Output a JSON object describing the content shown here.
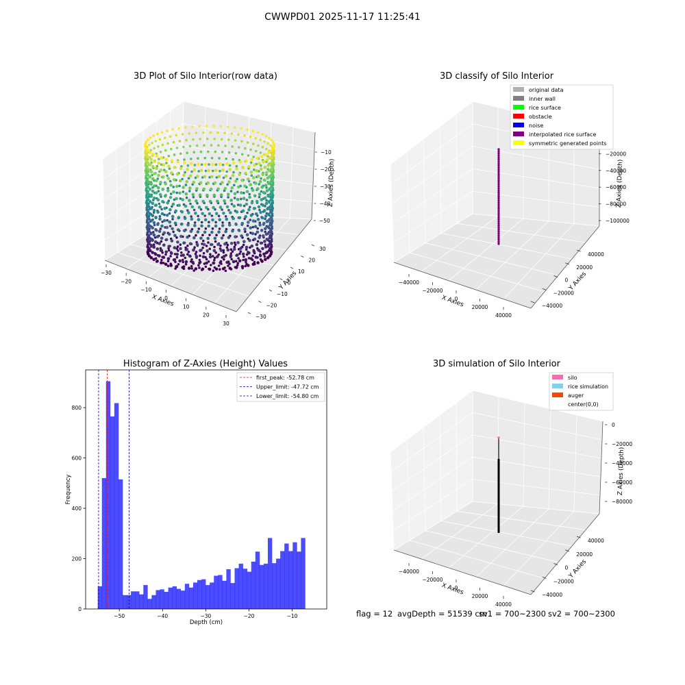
{
  "figure": {
    "title": "CWWPD01 2025-11-17 11:25:41",
    "footer": {
      "flag": "flag = 12",
      "avg_depth": "avgDepth = 51539 cm",
      "sv1": "sv1 = 700~2300",
      "sv2": "sv2 = 700~2300"
    }
  },
  "colors": {
    "histogram_bar": "#0000ff",
    "first_peak_line": "#ff0000",
    "limit_lines": "#0000cc",
    "viridis": [
      "#440154",
      "#3b528b",
      "#21918c",
      "#5ec962",
      "#fde725"
    ],
    "interpolated_rice_surface": "#800080",
    "simulation_line": "#000000",
    "silo": "#ff69b4"
  },
  "chart_data": [
    {
      "type": "scatter3d",
      "title": "3D Plot of Silo Interior(row data)",
      "xlabel": "X Axies",
      "ylabel": "Y Axies",
      "zlabel": "Z Axies (Depth)",
      "x_ticks": [
        "−30",
        "−20",
        "−10",
        "0",
        "10",
        "20",
        "30"
      ],
      "y_ticks": [
        "−30",
        "−20",
        "−10",
        "0",
        "10",
        "20",
        "30"
      ],
      "z_ticks": [
        "−10",
        "−20",
        "−30",
        "−40",
        "−50"
      ],
      "xlim": [
        -32,
        32
      ],
      "ylim": [
        -32,
        32
      ],
      "zlim": [
        -57,
        -4
      ],
      "description": "cylindrical point cloud, radius about 28, depth from -55 to -5, colored by depth with viridis colormap",
      "radius": 28,
      "z_range": [
        -55,
        -5
      ],
      "colormap": "viridis"
    },
    {
      "type": "scatter3d",
      "title": "3D classify of Silo Interior",
      "xlabel": "X Axies",
      "ylabel": "Y Axies",
      "zlabel": "Z Axies (Depth)",
      "x_ticks": [
        "−40000",
        "−20000",
        "0",
        "20000",
        "40000"
      ],
      "y_ticks": [
        "40000",
        "20000",
        "0",
        "−20000",
        "−40000"
      ],
      "z_ticks": [
        "0",
        "−20000",
        "−40000",
        "−60000",
        "−80000",
        "−100000"
      ],
      "legend": [
        {
          "label": "original data",
          "color": "#b0b0b0"
        },
        {
          "label": "inner wall",
          "color": "#808080"
        },
        {
          "label": "rice surface",
          "color": "#00ff00"
        },
        {
          "label": "obstacle",
          "color": "#ff0000"
        },
        {
          "label": "noise",
          "color": "#0000ff"
        },
        {
          "label": "interpolated rice surface",
          "color": "#800080"
        },
        {
          "label": "symmetric generated points",
          "color": "#ffff00"
        }
      ],
      "legend_position": "top-right",
      "series": [
        {
          "name": "interpolated rice surface",
          "x": 0,
          "y": 0,
          "z_range": [
            -100000,
            -5
          ]
        }
      ]
    },
    {
      "type": "bar",
      "title": "Histogram of Z-Axies (Height) Values",
      "xlabel": "Depth (cm)",
      "ylabel": "Frequency",
      "xlim": [
        -57.8,
        -2.0
      ],
      "ylim": [
        0,
        950
      ],
      "x_ticks": [
        -50,
        -40,
        -30,
        -20,
        -10
      ],
      "y_ticks": [
        0,
        200,
        400,
        600,
        800
      ],
      "bin_start": -55.0,
      "bin_width": 0.96,
      "values": [
        90,
        520,
        905,
        765,
        818,
        515,
        55,
        55,
        70,
        70,
        58,
        95,
        40,
        55,
        75,
        78,
        68,
        85,
        90,
        80,
        73,
        100,
        85,
        105,
        115,
        118,
        95,
        105,
        132,
        135,
        112,
        158,
        103,
        162,
        180,
        160,
        148,
        188,
        228,
        175,
        180,
        282,
        182,
        200,
        230,
        260,
        230,
        265,
        228,
        282
      ],
      "reference_lines": [
        {
          "label": "first_peak: -52.78 cm",
          "x": -52.78,
          "color": "#ff0000"
        },
        {
          "label": "Upper_limit: -47.72 cm",
          "x": -47.72,
          "color": "#0000cc"
        },
        {
          "label": "Lower_limit: -54.80 cm",
          "x": -54.8,
          "color": "#0000cc"
        }
      ],
      "legend_position": "top-right"
    },
    {
      "type": "line3d",
      "title": "3D simulation of Silo Interior",
      "xlabel": "X Axies",
      "ylabel": "Y Axies",
      "zlabel": "Z Axies (Depth)",
      "x_ticks": [
        "−40000",
        "−20000",
        "0",
        "20000",
        "40000"
      ],
      "y_ticks": [
        "40000",
        "20000",
        "0",
        "−20000",
        "−40000"
      ],
      "z_ticks": [
        "0",
        "−20000",
        "−40000",
        "−60000",
        "−80000"
      ],
      "legend": [
        {
          "label": "silo",
          "color": "#ff69b4"
        },
        {
          "label": "rice simulation",
          "color": "#87ceeb"
        },
        {
          "label": "auger",
          "color": "#ff4500"
        },
        {
          "label": "center(0,0)",
          "color": "none"
        }
      ],
      "legend_position": "top-right",
      "series": [
        {
          "name": "rice simulation",
          "x": 0,
          "y": 0,
          "z_range": [
            -92000,
            -5
          ]
        }
      ]
    }
  ]
}
